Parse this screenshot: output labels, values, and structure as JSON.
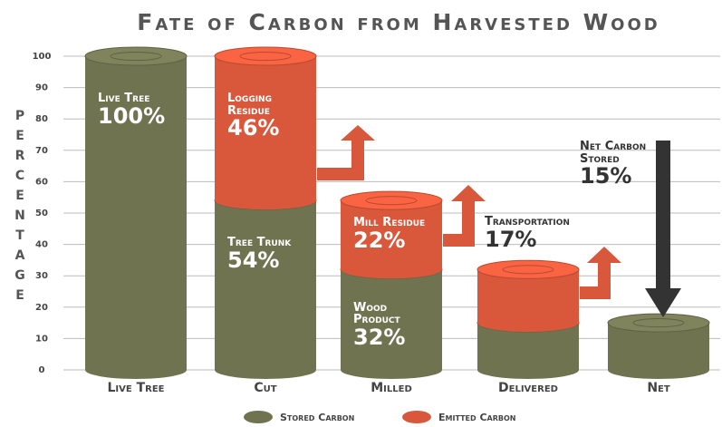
{
  "chart_data": {
    "type": "cylinder-bar",
    "title": "Fate of Carbon from Harvested Wood",
    "y_label": "Percentage",
    "categories": [
      "Live Tree",
      "Cut",
      "Milled",
      "Delivered",
      "Net"
    ],
    "series": [
      {
        "name": "Stored Carbon",
        "color": "#6f7350",
        "values": [
          100,
          54,
          32,
          15,
          15
        ],
        "value_labels": [
          "100%",
          "54%",
          "32%",
          null,
          "15%"
        ],
        "labels": [
          "Live Tree",
          "Tree Trunk",
          "Wood Product",
          null,
          "Net Carbon Stored"
        ]
      },
      {
        "name": "Emitted Carbon",
        "color": "#d9573a",
        "values": [
          null,
          46,
          22,
          17,
          null
        ],
        "value_labels": [
          null,
          "46%",
          "22%",
          "17%",
          null
        ],
        "labels": [
          null,
          "Logging Residue",
          "Mill Residue",
          "Transportation",
          null
        ]
      }
    ],
    "ylim": [
      0,
      100
    ],
    "yticks": [
      0,
      10,
      20,
      30,
      40,
      50,
      60,
      70,
      80,
      90,
      100
    ],
    "grid": true
  }
}
